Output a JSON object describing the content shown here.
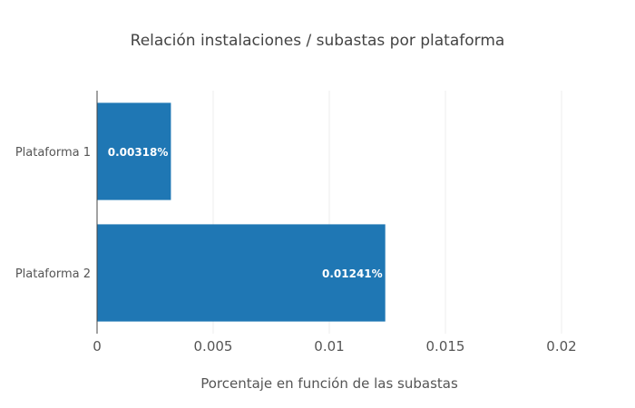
{
  "chart_data": {
    "type": "bar",
    "orientation": "horizontal",
    "title": "Relación instalaciones / subastas por plataforma",
    "xlabel": "Porcentaje en función de las subastas",
    "ylabel": "",
    "categories": [
      "Plataforma 1",
      "Plataforma 2"
    ],
    "values": [
      0.00318,
      0.01241
    ],
    "data_labels": [
      "0.00318%",
      "0.01241%"
    ],
    "xlim": [
      0,
      0.02
    ],
    "xticks": [
      0,
      0.005,
      0.01,
      0.015,
      0.02
    ],
    "xtick_labels": [
      "0",
      "0.005",
      "0.01",
      "0.015",
      "0.02"
    ],
    "grid": true,
    "legend": "none",
    "bar_color": "#1f77b4",
    "grid_color": "#eeeeee",
    "axis_color": "#444444"
  }
}
